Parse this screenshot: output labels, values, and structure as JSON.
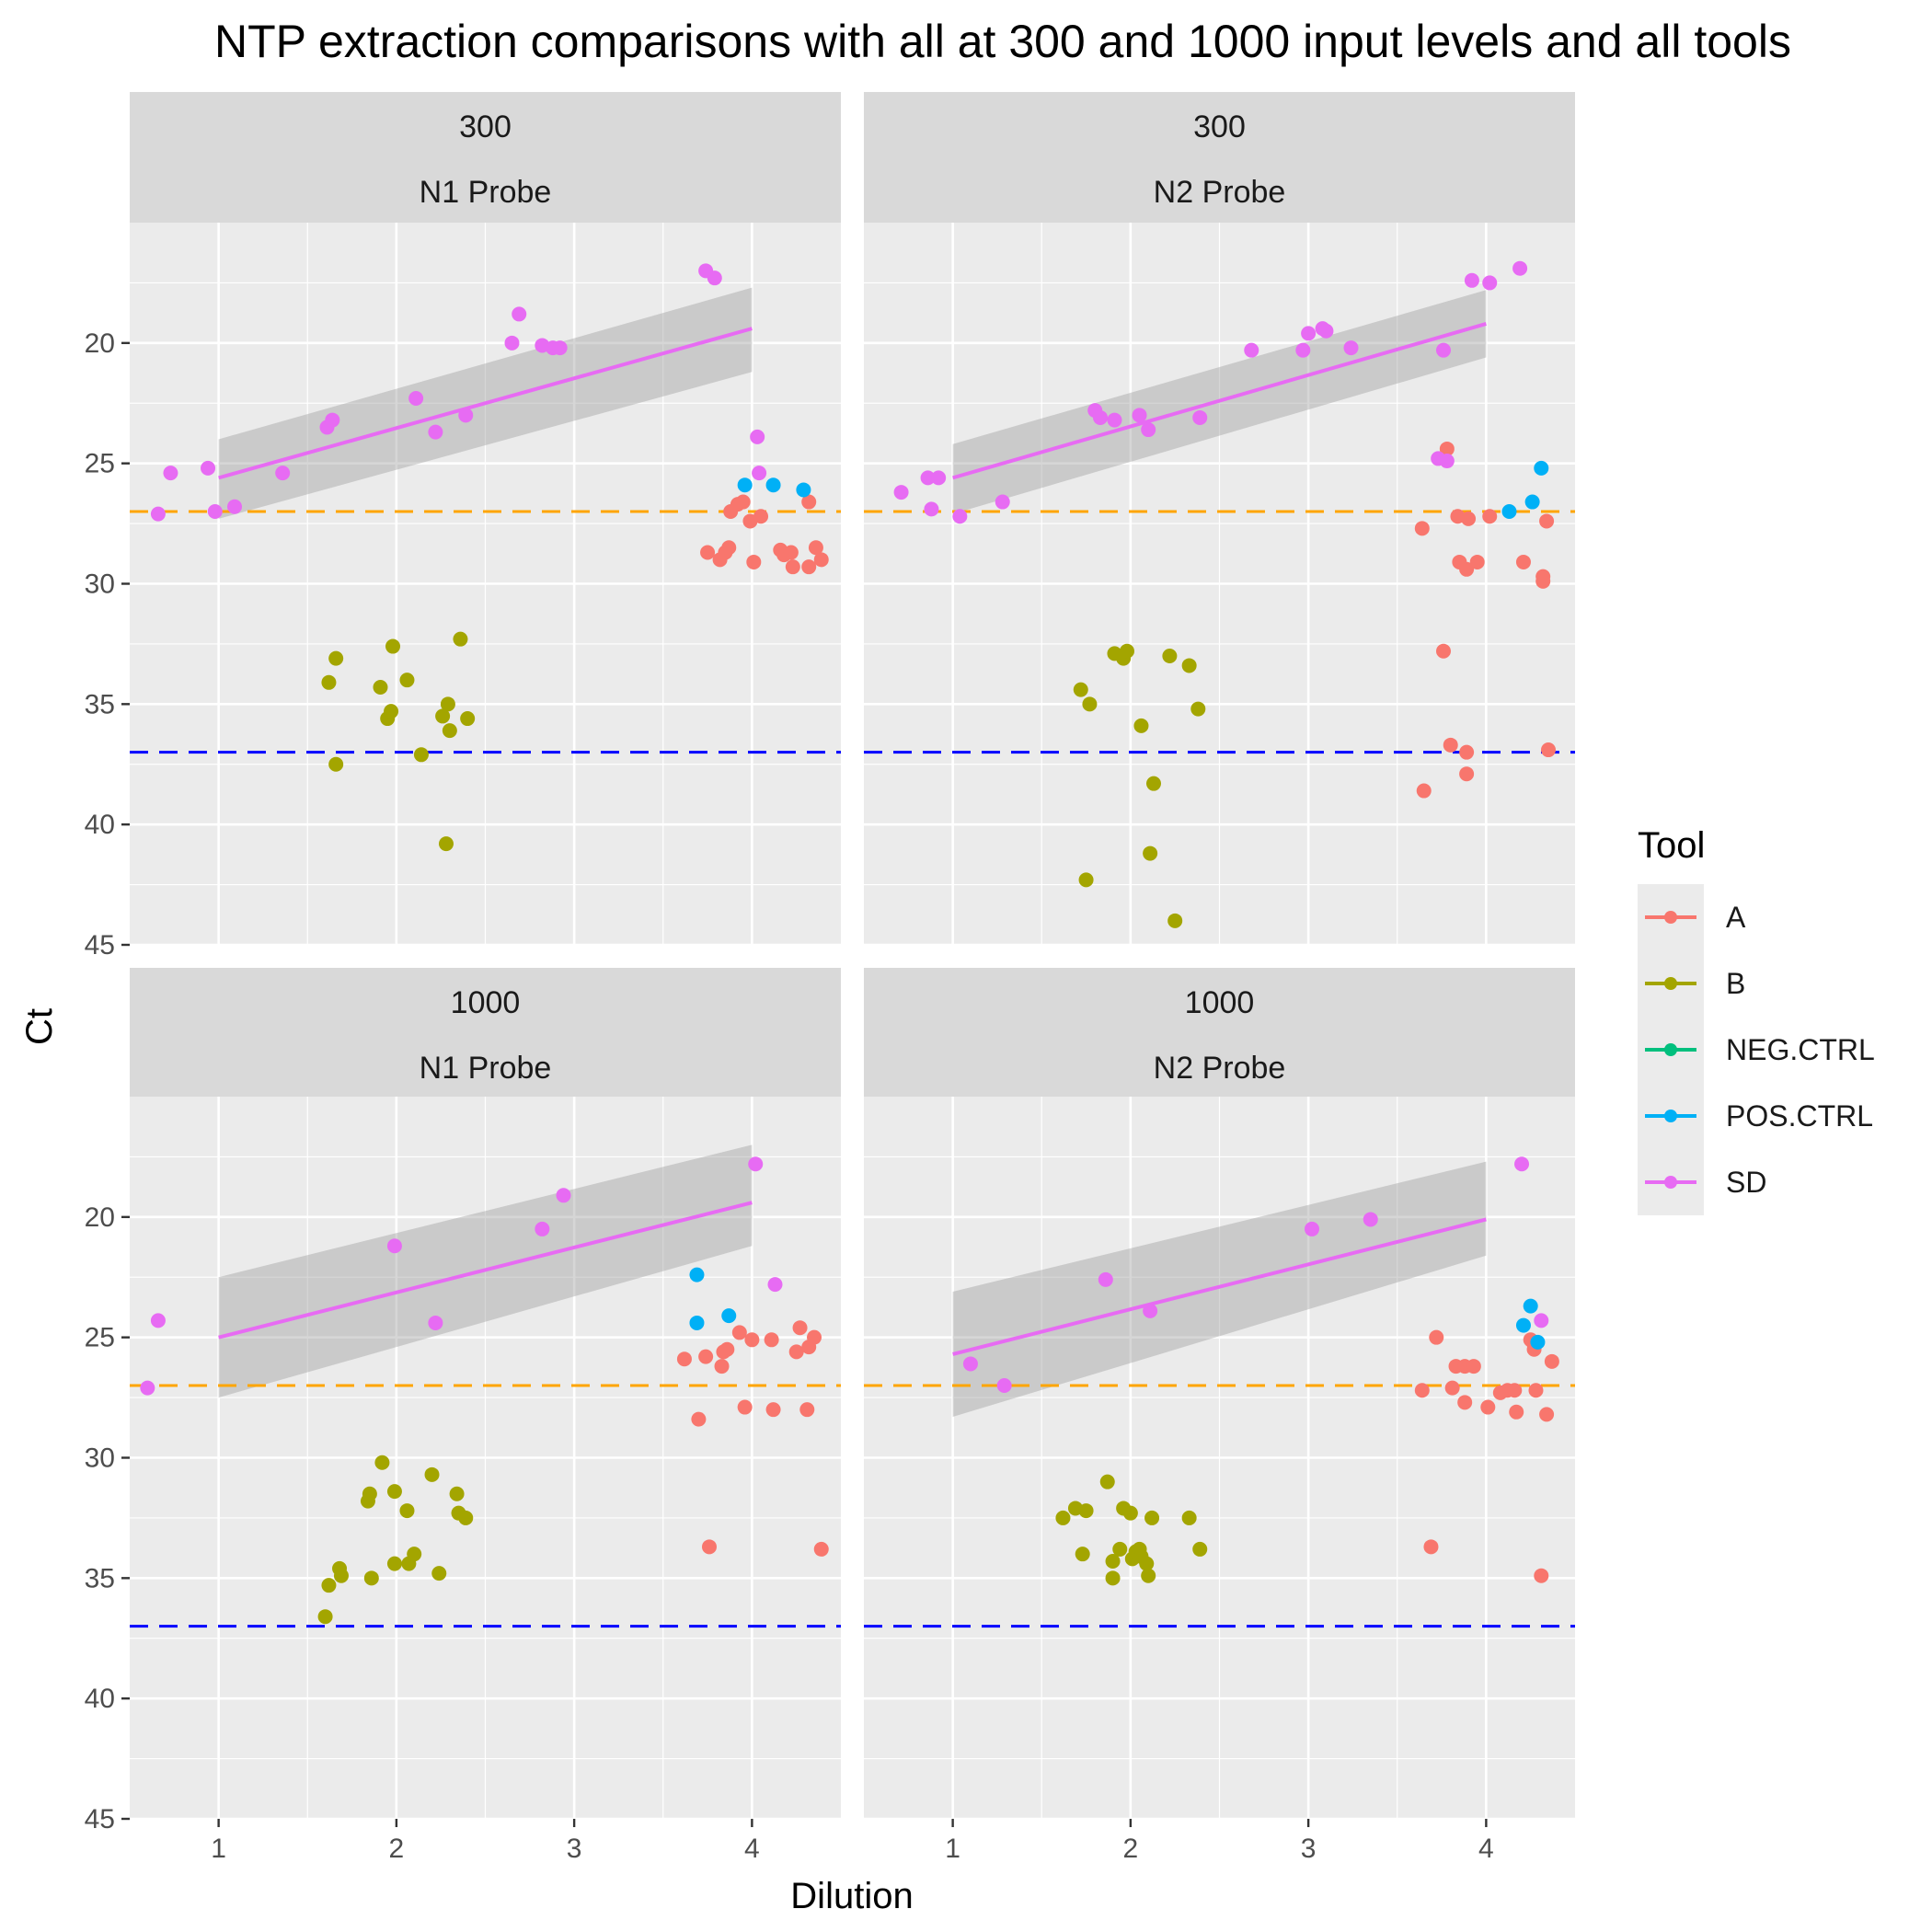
{
  "title": "NTP extraction comparisons with all at 300 and 1000 input levels and all tools",
  "xlabel": "Dilution",
  "ylabel": "Ct",
  "legend": {
    "title": "Tool",
    "entries": [
      {
        "name": "A",
        "color": "#F8766D"
      },
      {
        "name": "B",
        "color": "#A3A500"
      },
      {
        "name": "NEG.CTRL",
        "color": "#00BF7D"
      },
      {
        "name": "POS.CTRL",
        "color": "#00B0F6"
      },
      {
        "name": "SD",
        "color": "#E76BF3"
      }
    ]
  },
  "colors": {
    "A": "#F8766D",
    "B": "#A3A500",
    "NEG.CTRL": "#00BF7D",
    "POS.CTRL": "#00B0F6",
    "SD": "#E76BF3",
    "hline_orange": "#FFA500",
    "hline_blue": "#0000FF",
    "panel_bg": "#EBEBEB",
    "strip_bg": "#D9D9D9",
    "ribbon": "#999999"
  },
  "chart_data": {
    "type": "scatter",
    "xlim": [
      0.5,
      4.5
    ],
    "ylim": [
      15,
      45
    ],
    "y_reversed": true,
    "x_ticks": [
      1,
      2,
      3,
      4
    ],
    "y_ticks": [
      20,
      25,
      30,
      35,
      40,
      45
    ],
    "hlines": [
      {
        "y": 27,
        "color": "#FFA500",
        "style": "dashed"
      },
      {
        "y": 37,
        "color": "#0000FF",
        "style": "dashed"
      }
    ],
    "panels": [
      {
        "strip1": "300",
        "strip2": "N1 Probe",
        "points": {
          "A": [
            [
              3.88,
              27.0
            ],
            [
              3.92,
              26.7
            ],
            [
              3.95,
              26.6
            ],
            [
              3.99,
              27.4
            ],
            [
              4.05,
              27.2
            ],
            [
              4.32,
              26.6
            ],
            [
              3.75,
              28.7
            ],
            [
              3.85,
              28.7
            ],
            [
              3.82,
              29.0
            ],
            [
              3.87,
              28.5
            ],
            [
              4.01,
              29.1
            ],
            [
              4.16,
              28.6
            ],
            [
              4.18,
              28.8
            ],
            [
              4.22,
              28.7
            ],
            [
              4.23,
              29.3
            ],
            [
              4.32,
              29.3
            ],
            [
              4.36,
              28.5
            ],
            [
              4.39,
              29.0
            ]
          ],
          "B": [
            [
              1.62,
              34.1
            ],
            [
              1.66,
              33.1
            ],
            [
              1.66,
              37.5
            ],
            [
              1.91,
              34.3
            ],
            [
              1.95,
              35.6
            ],
            [
              1.97,
              35.3
            ],
            [
              1.98,
              32.6
            ],
            [
              2.06,
              34.0
            ],
            [
              2.14,
              37.1
            ],
            [
              2.26,
              35.5
            ],
            [
              2.28,
              40.8
            ],
            [
              2.29,
              35.0
            ],
            [
              2.3,
              36.1
            ],
            [
              2.36,
              32.3
            ],
            [
              2.4,
              35.6
            ]
          ],
          "POS.CTRL": [
            [
              3.96,
              25.9
            ],
            [
              4.12,
              25.9
            ],
            [
              4.29,
              26.1
            ]
          ],
          "SD": [
            [
              0.66,
              27.1
            ],
            [
              0.73,
              25.4
            ],
            [
              0.94,
              25.2
            ],
            [
              0.98,
              27.0
            ],
            [
              1.09,
              26.8
            ],
            [
              1.36,
              25.4
            ],
            [
              1.61,
              23.5
            ],
            [
              1.64,
              23.2
            ],
            [
              2.11,
              22.3
            ],
            [
              2.22,
              23.7
            ],
            [
              2.39,
              23.0
            ],
            [
              2.65,
              20.0
            ],
            [
              2.69,
              18.8
            ],
            [
              2.82,
              20.1
            ],
            [
              2.88,
              20.2
            ],
            [
              2.92,
              20.2
            ],
            [
              3.74,
              17.0
            ],
            [
              3.79,
              17.3
            ],
            [
              4.03,
              23.9
            ],
            [
              4.04,
              25.4
            ]
          ]
        },
        "fit": {
          "x": [
            1,
            4
          ],
          "y": [
            25.6,
            19.4
          ],
          "ribbon_low": [
            27.3,
            21.2
          ],
          "ribbon_high": [
            24.0,
            17.7
          ]
        }
      },
      {
        "strip1": "300",
        "strip2": "N2 Probe",
        "points": {
          "A": [
            [
              3.78,
              24.4
            ],
            [
              3.76,
              32.8
            ],
            [
              3.8,
              36.7
            ],
            [
              3.84,
              27.2
            ],
            [
              3.85,
              29.1
            ],
            [
              3.89,
              29.4
            ],
            [
              3.9,
              27.3
            ],
            [
              3.89,
              37.0
            ],
            [
              3.89,
              37.9
            ],
            [
              3.95,
              29.1
            ],
            [
              4.02,
              27.2
            ],
            [
              4.21,
              29.1
            ],
            [
              4.32,
              29.7
            ],
            [
              4.32,
              29.9
            ],
            [
              4.34,
              27.4
            ],
            [
              4.35,
              36.9
            ],
            [
              3.64,
              27.7
            ],
            [
              3.65,
              38.6
            ]
          ],
          "B": [
            [
              1.72,
              34.4
            ],
            [
              1.75,
              42.3
            ],
            [
              1.77,
              35.0
            ],
            [
              1.91,
              32.9
            ],
            [
              1.96,
              33.1
            ],
            [
              1.98,
              32.8
            ],
            [
              2.06,
              35.9
            ],
            [
              2.11,
              41.2
            ],
            [
              2.13,
              38.3
            ],
            [
              2.22,
              33.0
            ],
            [
              2.25,
              44.0
            ],
            [
              2.33,
              33.4
            ],
            [
              2.38,
              35.2
            ]
          ],
          "POS.CTRL": [
            [
              4.13,
              27.0
            ],
            [
              4.26,
              26.6
            ],
            [
              4.31,
              25.2
            ]
          ],
          "SD": [
            [
              0.71,
              26.2
            ],
            [
              0.86,
              25.6
            ],
            [
              0.88,
              26.9
            ],
            [
              0.92,
              25.6
            ],
            [
              1.04,
              27.2
            ],
            [
              1.28,
              26.6
            ],
            [
              1.8,
              22.8
            ],
            [
              1.83,
              23.1
            ],
            [
              1.91,
              23.2
            ],
            [
              2.05,
              23.0
            ],
            [
              2.1,
              23.6
            ],
            [
              2.39,
              23.1
            ],
            [
              2.68,
              20.3
            ],
            [
              2.97,
              20.3
            ],
            [
              3.0,
              19.6
            ],
            [
              3.08,
              19.4
            ],
            [
              3.1,
              19.5
            ],
            [
              3.24,
              20.2
            ],
            [
              3.73,
              24.8
            ],
            [
              3.76,
              20.3
            ],
            [
              3.78,
              24.9
            ],
            [
              3.92,
              17.4
            ],
            [
              4.02,
              17.5
            ],
            [
              4.19,
              16.9
            ]
          ]
        },
        "fit": {
          "x": [
            1,
            4
          ],
          "y": [
            25.6,
            19.2
          ],
          "ribbon_low": [
            27.1,
            20.6
          ],
          "ribbon_high": [
            24.2,
            17.8
          ]
        }
      },
      {
        "strip1": "1000",
        "strip2": "N1 Probe",
        "points": {
          "A": [
            [
              3.62,
              25.9
            ],
            [
              3.74,
              25.8
            ],
            [
              3.83,
              26.2
            ],
            [
              3.84,
              25.6
            ],
            [
              3.86,
              25.5
            ],
            [
              3.93,
              24.8
            ],
            [
              4.0,
              25.1
            ],
            [
              4.11,
              25.1
            ],
            [
              4.27,
              24.6
            ],
            [
              4.25,
              25.6
            ],
            [
              4.32,
              25.4
            ],
            [
              4.35,
              25.0
            ],
            [
              3.7,
              28.4
            ],
            [
              3.96,
              27.9
            ],
            [
              4.12,
              28.0
            ],
            [
              4.31,
              28.0
            ],
            [
              3.76,
              33.7
            ],
            [
              4.39,
              33.8
            ]
          ],
          "B": [
            [
              1.6,
              36.6
            ],
            [
              1.62,
              35.3
            ],
            [
              1.68,
              34.6
            ],
            [
              1.69,
              34.9
            ],
            [
              1.84,
              31.8
            ],
            [
              1.86,
              35.0
            ],
            [
              1.85,
              31.5
            ],
            [
              1.92,
              30.2
            ],
            [
              1.99,
              31.4
            ],
            [
              1.99,
              34.4
            ],
            [
              2.06,
              32.2
            ],
            [
              2.07,
              34.4
            ],
            [
              2.1,
              34.0
            ],
            [
              2.2,
              30.7
            ],
            [
              2.24,
              34.8
            ],
            [
              2.34,
              31.5
            ],
            [
              2.35,
              32.3
            ],
            [
              2.39,
              32.5
            ]
          ],
          "POS.CTRL": [
            [
              3.69,
              22.4
            ],
            [
              3.69,
              24.4
            ],
            [
              3.87,
              24.1
            ]
          ],
          "SD": [
            [
              0.6,
              27.1
            ],
            [
              0.66,
              24.3
            ],
            [
              1.99,
              21.2
            ],
            [
              2.22,
              24.4
            ],
            [
              2.82,
              20.5
            ],
            [
              2.94,
              19.1
            ],
            [
              4.02,
              17.8
            ],
            [
              4.13,
              22.8
            ]
          ]
        },
        "fit": {
          "x": [
            1,
            4
          ],
          "y": [
            25.0,
            19.4
          ],
          "ribbon_low": [
            27.5,
            21.2
          ],
          "ribbon_high": [
            22.5,
            17.0
          ]
        }
      },
      {
        "strip1": "1000",
        "strip2": "N2 Probe",
        "points": {
          "A": [
            [
              3.64,
              27.2
            ],
            [
              3.72,
              25.0
            ],
            [
              3.81,
              27.1
            ],
            [
              3.83,
              26.2
            ],
            [
              3.88,
              27.7
            ],
            [
              3.88,
              26.2
            ],
            [
              3.93,
              26.2
            ],
            [
              4.01,
              27.9
            ],
            [
              4.08,
              27.3
            ],
            [
              4.12,
              27.2
            ],
            [
              4.16,
              27.2
            ],
            [
              4.17,
              28.1
            ],
            [
              4.25,
              25.1
            ],
            [
              4.27,
              25.3
            ],
            [
              4.27,
              25.5
            ],
            [
              4.28,
              27.2
            ],
            [
              4.34,
              28.2
            ],
            [
              4.37,
              26.0
            ],
            [
              3.69,
              33.7
            ],
            [
              4.31,
              34.9
            ]
          ],
          "B": [
            [
              1.62,
              32.5
            ],
            [
              1.69,
              32.1
            ],
            [
              1.73,
              34.0
            ],
            [
              1.75,
              32.2
            ],
            [
              1.87,
              31.0
            ],
            [
              1.9,
              34.3
            ],
            [
              1.9,
              35.0
            ],
            [
              1.94,
              33.8
            ],
            [
              1.96,
              32.1
            ],
            [
              2.0,
              32.3
            ],
            [
              2.01,
              34.2
            ],
            [
              2.03,
              33.9
            ],
            [
              2.05,
              33.8
            ],
            [
              2.06,
              34.1
            ],
            [
              2.09,
              34.4
            ],
            [
              2.1,
              34.9
            ],
            [
              2.12,
              32.5
            ],
            [
              2.33,
              32.5
            ],
            [
              2.39,
              33.8
            ]
          ],
          "POS.CTRL": [
            [
              4.21,
              24.5
            ],
            [
              4.25,
              23.7
            ],
            [
              4.29,
              25.2
            ]
          ],
          "SD": [
            [
              1.1,
              26.1
            ],
            [
              1.29,
              27.0
            ],
            [
              1.86,
              22.6
            ],
            [
              2.11,
              23.9
            ],
            [
              3.02,
              20.5
            ],
            [
              3.35,
              20.1
            ],
            [
              4.2,
              17.8
            ],
            [
              4.31,
              24.3
            ]
          ]
        },
        "fit": {
          "x": [
            1,
            4
          ],
          "y": [
            25.7,
            20.1
          ],
          "ribbon_low": [
            28.3,
            21.6
          ],
          "ribbon_high": [
            23.1,
            17.7
          ]
        }
      }
    ]
  }
}
